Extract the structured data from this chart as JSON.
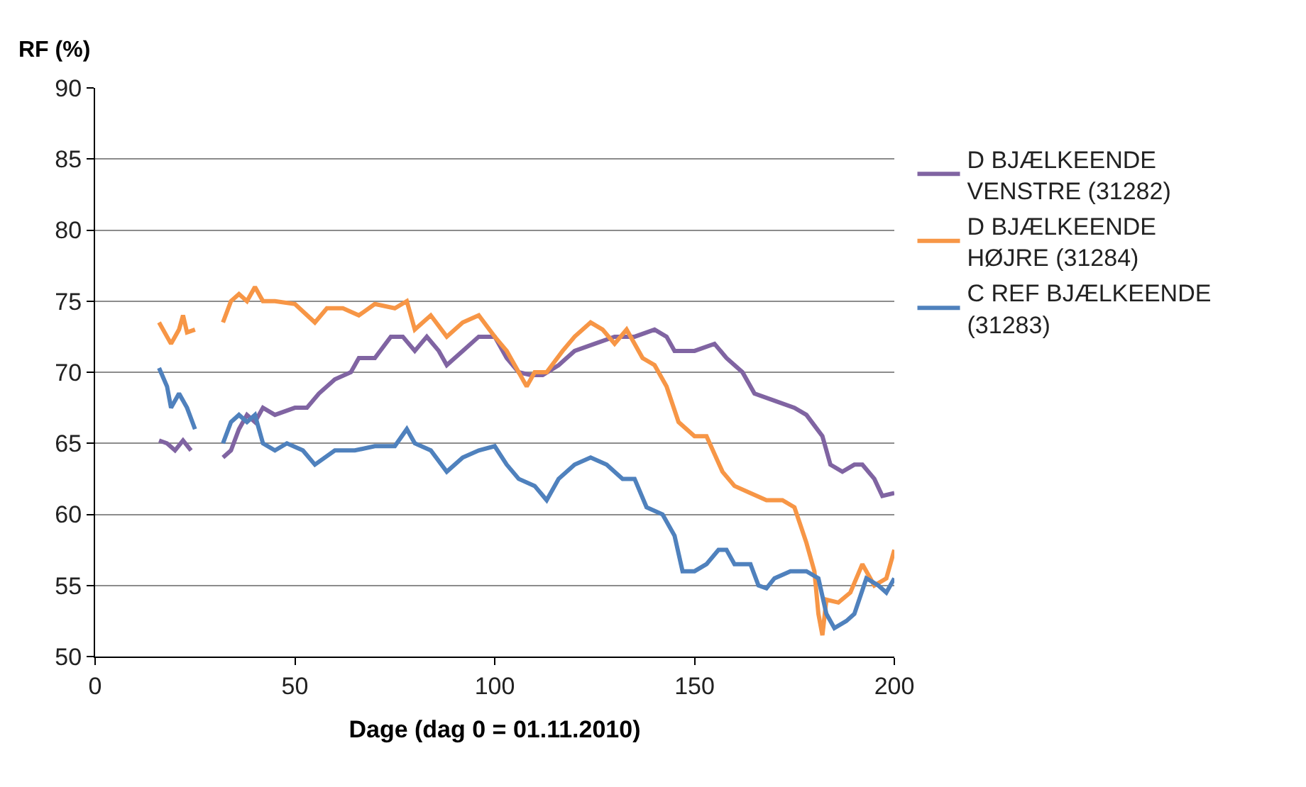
{
  "chart_data": {
    "type": "line",
    "xlabel": "Dage (dag 0 = 01.11.2010)",
    "ylabel": "RF (%)",
    "xlim": [
      0,
      200
    ],
    "xticks": [
      0,
      50,
      100,
      150,
      200
    ],
    "ylim": [
      50,
      90
    ],
    "yticks": [
      50,
      55,
      60,
      65,
      70,
      75,
      80,
      85,
      90
    ],
    "grid": "y",
    "legend": "right",
    "marker": "none",
    "line_style": "solid",
    "series": [
      {
        "name": "D BJÆLKEENDE\nVENSTRE (31282)",
        "color": "#8064a2",
        "x": [
          16,
          18,
          20,
          22,
          24,
          28,
          32,
          34,
          36,
          38,
          40,
          42,
          45,
          50,
          53,
          56,
          60,
          64,
          66,
          70,
          74,
          77,
          80,
          83,
          86,
          88,
          92,
          96,
          100,
          103,
          106,
          109,
          112,
          116,
          120,
          125,
          130,
          135,
          140,
          143,
          145,
          150,
          155,
          158,
          162,
          165,
          170,
          175,
          178,
          182,
          184,
          187,
          190,
          192,
          195,
          197,
          200
        ],
        "values": [
          65.2,
          65,
          64.5,
          65.2,
          64.5,
          null,
          64,
          64.5,
          66,
          67,
          66.5,
          67.5,
          67,
          67.5,
          67.5,
          68.5,
          69.5,
          70,
          71,
          71,
          72.5,
          72.5,
          71.5,
          72.5,
          71.5,
          70.5,
          71.5,
          72.5,
          72.5,
          71,
          70,
          69.8,
          69.8,
          70.5,
          71.5,
          72,
          72.5,
          72.5,
          73,
          72.5,
          71.5,
          71.5,
          72,
          71,
          70,
          68.5,
          68,
          67.5,
          67,
          65.5,
          63.5,
          63,
          63.5,
          63.5,
          62.5,
          61.3,
          61.5
        ]
      },
      {
        "name": "D BJÆLKEENDE\nHØJRE (31284)",
        "color": "#f79646",
        "x": [
          16,
          18,
          19,
          21,
          22,
          23,
          25,
          28,
          32,
          34,
          36,
          38,
          40,
          42,
          45,
          50,
          55,
          58,
          62,
          66,
          70,
          75,
          78,
          80,
          84,
          88,
          92,
          96,
          100,
          103,
          106,
          108,
          110,
          113,
          117,
          120,
          124,
          127,
          130,
          133,
          137,
          140,
          143,
          146,
          150,
          153,
          157,
          160,
          164,
          168,
          172,
          175,
          178,
          180,
          181,
          182,
          183,
          186,
          189,
          192,
          195,
          198,
          200
        ],
        "values": [
          73.5,
          72.5,
          72,
          73,
          74,
          72.8,
          73,
          null,
          73.5,
          75,
          75.5,
          75,
          76,
          75,
          75,
          74.8,
          73.5,
          74.5,
          74.5,
          74,
          74.8,
          74.5,
          75,
          73,
          74,
          72.5,
          73.5,
          74,
          72.5,
          71.5,
          70,
          69,
          70,
          70,
          71.5,
          72.5,
          73.5,
          73,
          72,
          73,
          71,
          70.5,
          69,
          66.5,
          65.5,
          65.5,
          63,
          62,
          61.5,
          61,
          61,
          60.5,
          58,
          56,
          53,
          51.5,
          54,
          53.8,
          54.5,
          56.5,
          55,
          55.5,
          57.5
        ]
      },
      {
        "name": "C REF BJÆLKEENDE\n(31283)",
        "color": "#4f81bd",
        "x": [
          16,
          18,
          19,
          21,
          23,
          25,
          28,
          32,
          34,
          36,
          38,
          40,
          42,
          45,
          48,
          52,
          55,
          60,
          65,
          70,
          75,
          78,
          80,
          84,
          88,
          92,
          96,
          100,
          103,
          106,
          110,
          113,
          116,
          120,
          124,
          128,
          132,
          135,
          138,
          142,
          145,
          147,
          150,
          153,
          156,
          158,
          160,
          164,
          166,
          168,
          170,
          174,
          178,
          181,
          183,
          185,
          188,
          190,
          193,
          196,
          198,
          200
        ],
        "values": [
          70.3,
          69,
          67.5,
          68.5,
          67.5,
          66,
          null,
          65,
          66.5,
          67,
          66.5,
          67,
          65,
          64.5,
          65,
          64.5,
          63.5,
          64.5,
          64.5,
          64.8,
          64.8,
          66,
          65,
          64.5,
          63,
          64,
          64.5,
          64.8,
          63.5,
          62.5,
          62,
          61,
          62.5,
          63.5,
          64,
          63.5,
          62.5,
          62.5,
          60.5,
          60,
          58.5,
          56,
          56,
          56.5,
          57.5,
          57.5,
          56.5,
          56.5,
          55,
          54.8,
          55.5,
          56,
          56,
          55.5,
          53,
          52,
          52.5,
          53,
          55.5,
          55,
          54.5,
          55.5
        ]
      }
    ]
  }
}
